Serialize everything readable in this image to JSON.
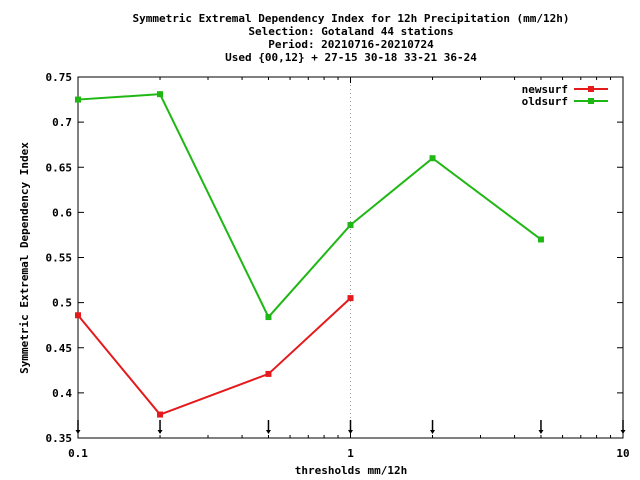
{
  "chart_data": {
    "type": "line",
    "title_lines": [
      "Symmetric Extremal Dependency Index  for 12h Precipitation (mm/12h)",
      "Selection: Gotaland     44 stations",
      "Period: 20210716-20210724",
      "Used {00,12} + 27-15 30-18 33-21 36-24"
    ],
    "xlabel": "thresholds mm/12h",
    "ylabel": "Symmetric Extremal Dependency Index",
    "x_scale": "log",
    "xlim": [
      0.1,
      10
    ],
    "ylim": [
      0.35,
      0.75
    ],
    "x_ticks": [
      {
        "value": 0.1,
        "label": "0.1"
      },
      {
        "value": 1,
        "label": "1"
      },
      {
        "value": 10,
        "label": "10"
      }
    ],
    "y_ticks": [
      {
        "value": 0.35,
        "label": "0.35"
      },
      {
        "value": 0.4,
        "label": "0.4"
      },
      {
        "value": 0.45,
        "label": "0.45"
      },
      {
        "value": 0.5,
        "label": "0.5"
      },
      {
        "value": 0.55,
        "label": "0.55"
      },
      {
        "value": 0.6,
        "label": "0.6"
      },
      {
        "value": 0.65,
        "label": "0.65"
      },
      {
        "value": 0.7,
        "label": "0.7"
      },
      {
        "value": 0.75,
        "label": "0.75"
      }
    ],
    "threshold_markers": [
      0.1,
      0.2,
      0.5,
      1,
      2,
      5,
      10
    ],
    "grid": "dotted at x=1",
    "legend_position": "top-right",
    "series": [
      {
        "name": "newsurf",
        "color": "#e41a1c",
        "x": [
          0.1,
          0.2,
          0.5,
          1
        ],
        "y": [
          0.486,
          0.376,
          0.421,
          0.505
        ]
      },
      {
        "name": "oldsurf",
        "color": "#1fb714",
        "x": [
          0.1,
          0.2,
          0.5,
          1,
          2,
          5
        ],
        "y": [
          0.725,
          0.731,
          0.484,
          0.586,
          0.66,
          0.57
        ]
      }
    ]
  }
}
